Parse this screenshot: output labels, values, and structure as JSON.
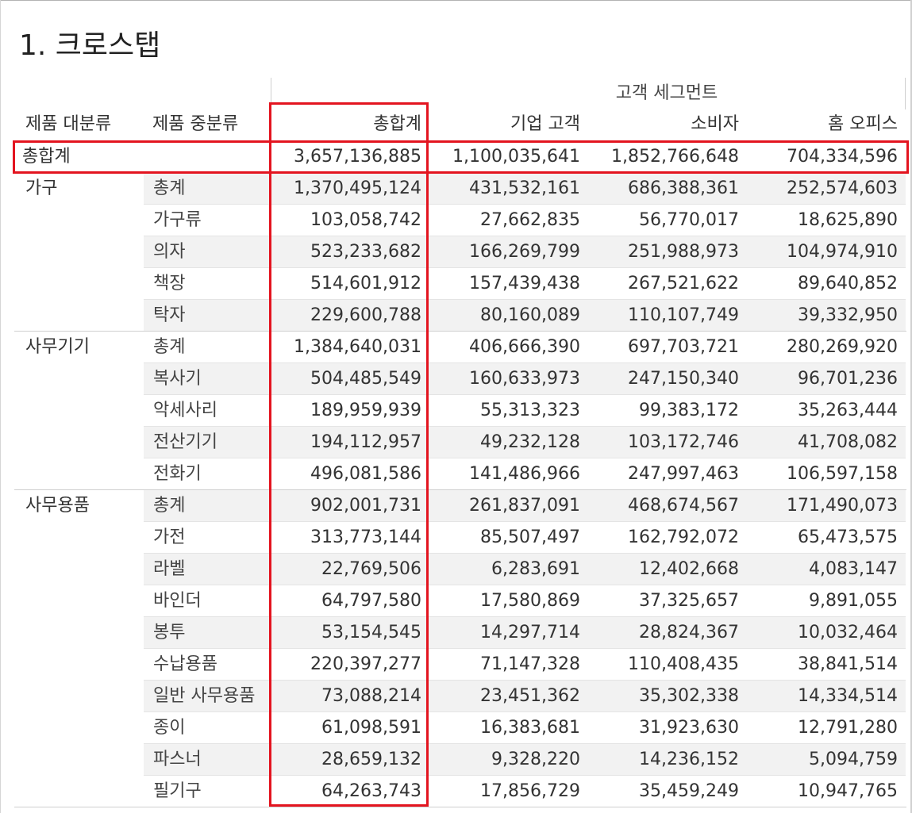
{
  "title": "1. 크로스탭",
  "header": {
    "row_header_1": "제품 대분류",
    "row_header_2": "제품 중분류",
    "group_label": "고객 세그먼트",
    "columns": [
      "총합계",
      "기업 고객",
      "소비자",
      "홈 오피스"
    ]
  },
  "grand_total": {
    "label": "총합계",
    "values": [
      "3,657,136,885",
      "1,100,035,641",
      "1,852,766,648",
      "704,334,596"
    ]
  },
  "groups": [
    {
      "category": "가구",
      "rows": [
        {
          "sub": "총계",
          "values": [
            "1,370,495,124",
            "431,532,161",
            "686,388,361",
            "252,574,603"
          ]
        },
        {
          "sub": "가구류",
          "values": [
            "103,058,742",
            "27,662,835",
            "56,770,017",
            "18,625,890"
          ]
        },
        {
          "sub": "의자",
          "values": [
            "523,233,682",
            "166,269,799",
            "251,988,973",
            "104,974,910"
          ]
        },
        {
          "sub": "책장",
          "values": [
            "514,601,912",
            "157,439,438",
            "267,521,622",
            "89,640,852"
          ]
        },
        {
          "sub": "탁자",
          "values": [
            "229,600,788",
            "80,160,089",
            "110,107,749",
            "39,332,950"
          ]
        }
      ]
    },
    {
      "category": "사무기기",
      "rows": [
        {
          "sub": "총계",
          "values": [
            "1,384,640,031",
            "406,666,390",
            "697,703,721",
            "280,269,920"
          ]
        },
        {
          "sub": "복사기",
          "values": [
            "504,485,549",
            "160,633,973",
            "247,150,340",
            "96,701,236"
          ]
        },
        {
          "sub": "악세사리",
          "values": [
            "189,959,939",
            "55,313,323",
            "99,383,172",
            "35,263,444"
          ]
        },
        {
          "sub": "전산기기",
          "values": [
            "194,112,957",
            "49,232,128",
            "103,172,746",
            "41,708,082"
          ]
        },
        {
          "sub": "전화기",
          "values": [
            "496,081,586",
            "141,486,966",
            "247,997,463",
            "106,597,158"
          ]
        }
      ]
    },
    {
      "category": "사무용품",
      "rows": [
        {
          "sub": "총계",
          "values": [
            "902,001,731",
            "261,837,091",
            "468,674,567",
            "171,490,073"
          ]
        },
        {
          "sub": "가전",
          "values": [
            "313,773,144",
            "85,507,497",
            "162,792,072",
            "65,473,575"
          ]
        },
        {
          "sub": "라벨",
          "values": [
            "22,769,506",
            "6,283,691",
            "12,402,668",
            "4,083,147"
          ]
        },
        {
          "sub": "바인더",
          "values": [
            "64,797,580",
            "17,580,869",
            "37,325,657",
            "9,891,055"
          ]
        },
        {
          "sub": "봉투",
          "values": [
            "53,154,545",
            "14,297,714",
            "28,824,367",
            "10,032,464"
          ]
        },
        {
          "sub": "수납용품",
          "values": [
            "220,397,277",
            "71,147,328",
            "110,408,435",
            "38,841,514"
          ]
        },
        {
          "sub": "일반 사무용품",
          "values": [
            "73,088,214",
            "23,451,362",
            "35,302,338",
            "14,334,514"
          ]
        },
        {
          "sub": "종이",
          "values": [
            "61,098,591",
            "16,383,681",
            "31,923,630",
            "12,791,280"
          ]
        },
        {
          "sub": "파스너",
          "values": [
            "28,659,132",
            "9,328,220",
            "14,236,152",
            "5,094,759"
          ]
        },
        {
          "sub": "필기구",
          "values": [
            "64,263,743",
            "17,856,729",
            "35,459,249",
            "10,947,765"
          ]
        }
      ]
    }
  ],
  "colors": {
    "highlight": "#e3141f",
    "band": "#f2f2f2",
    "grid": "#d8d8d8",
    "text": "#333333"
  }
}
